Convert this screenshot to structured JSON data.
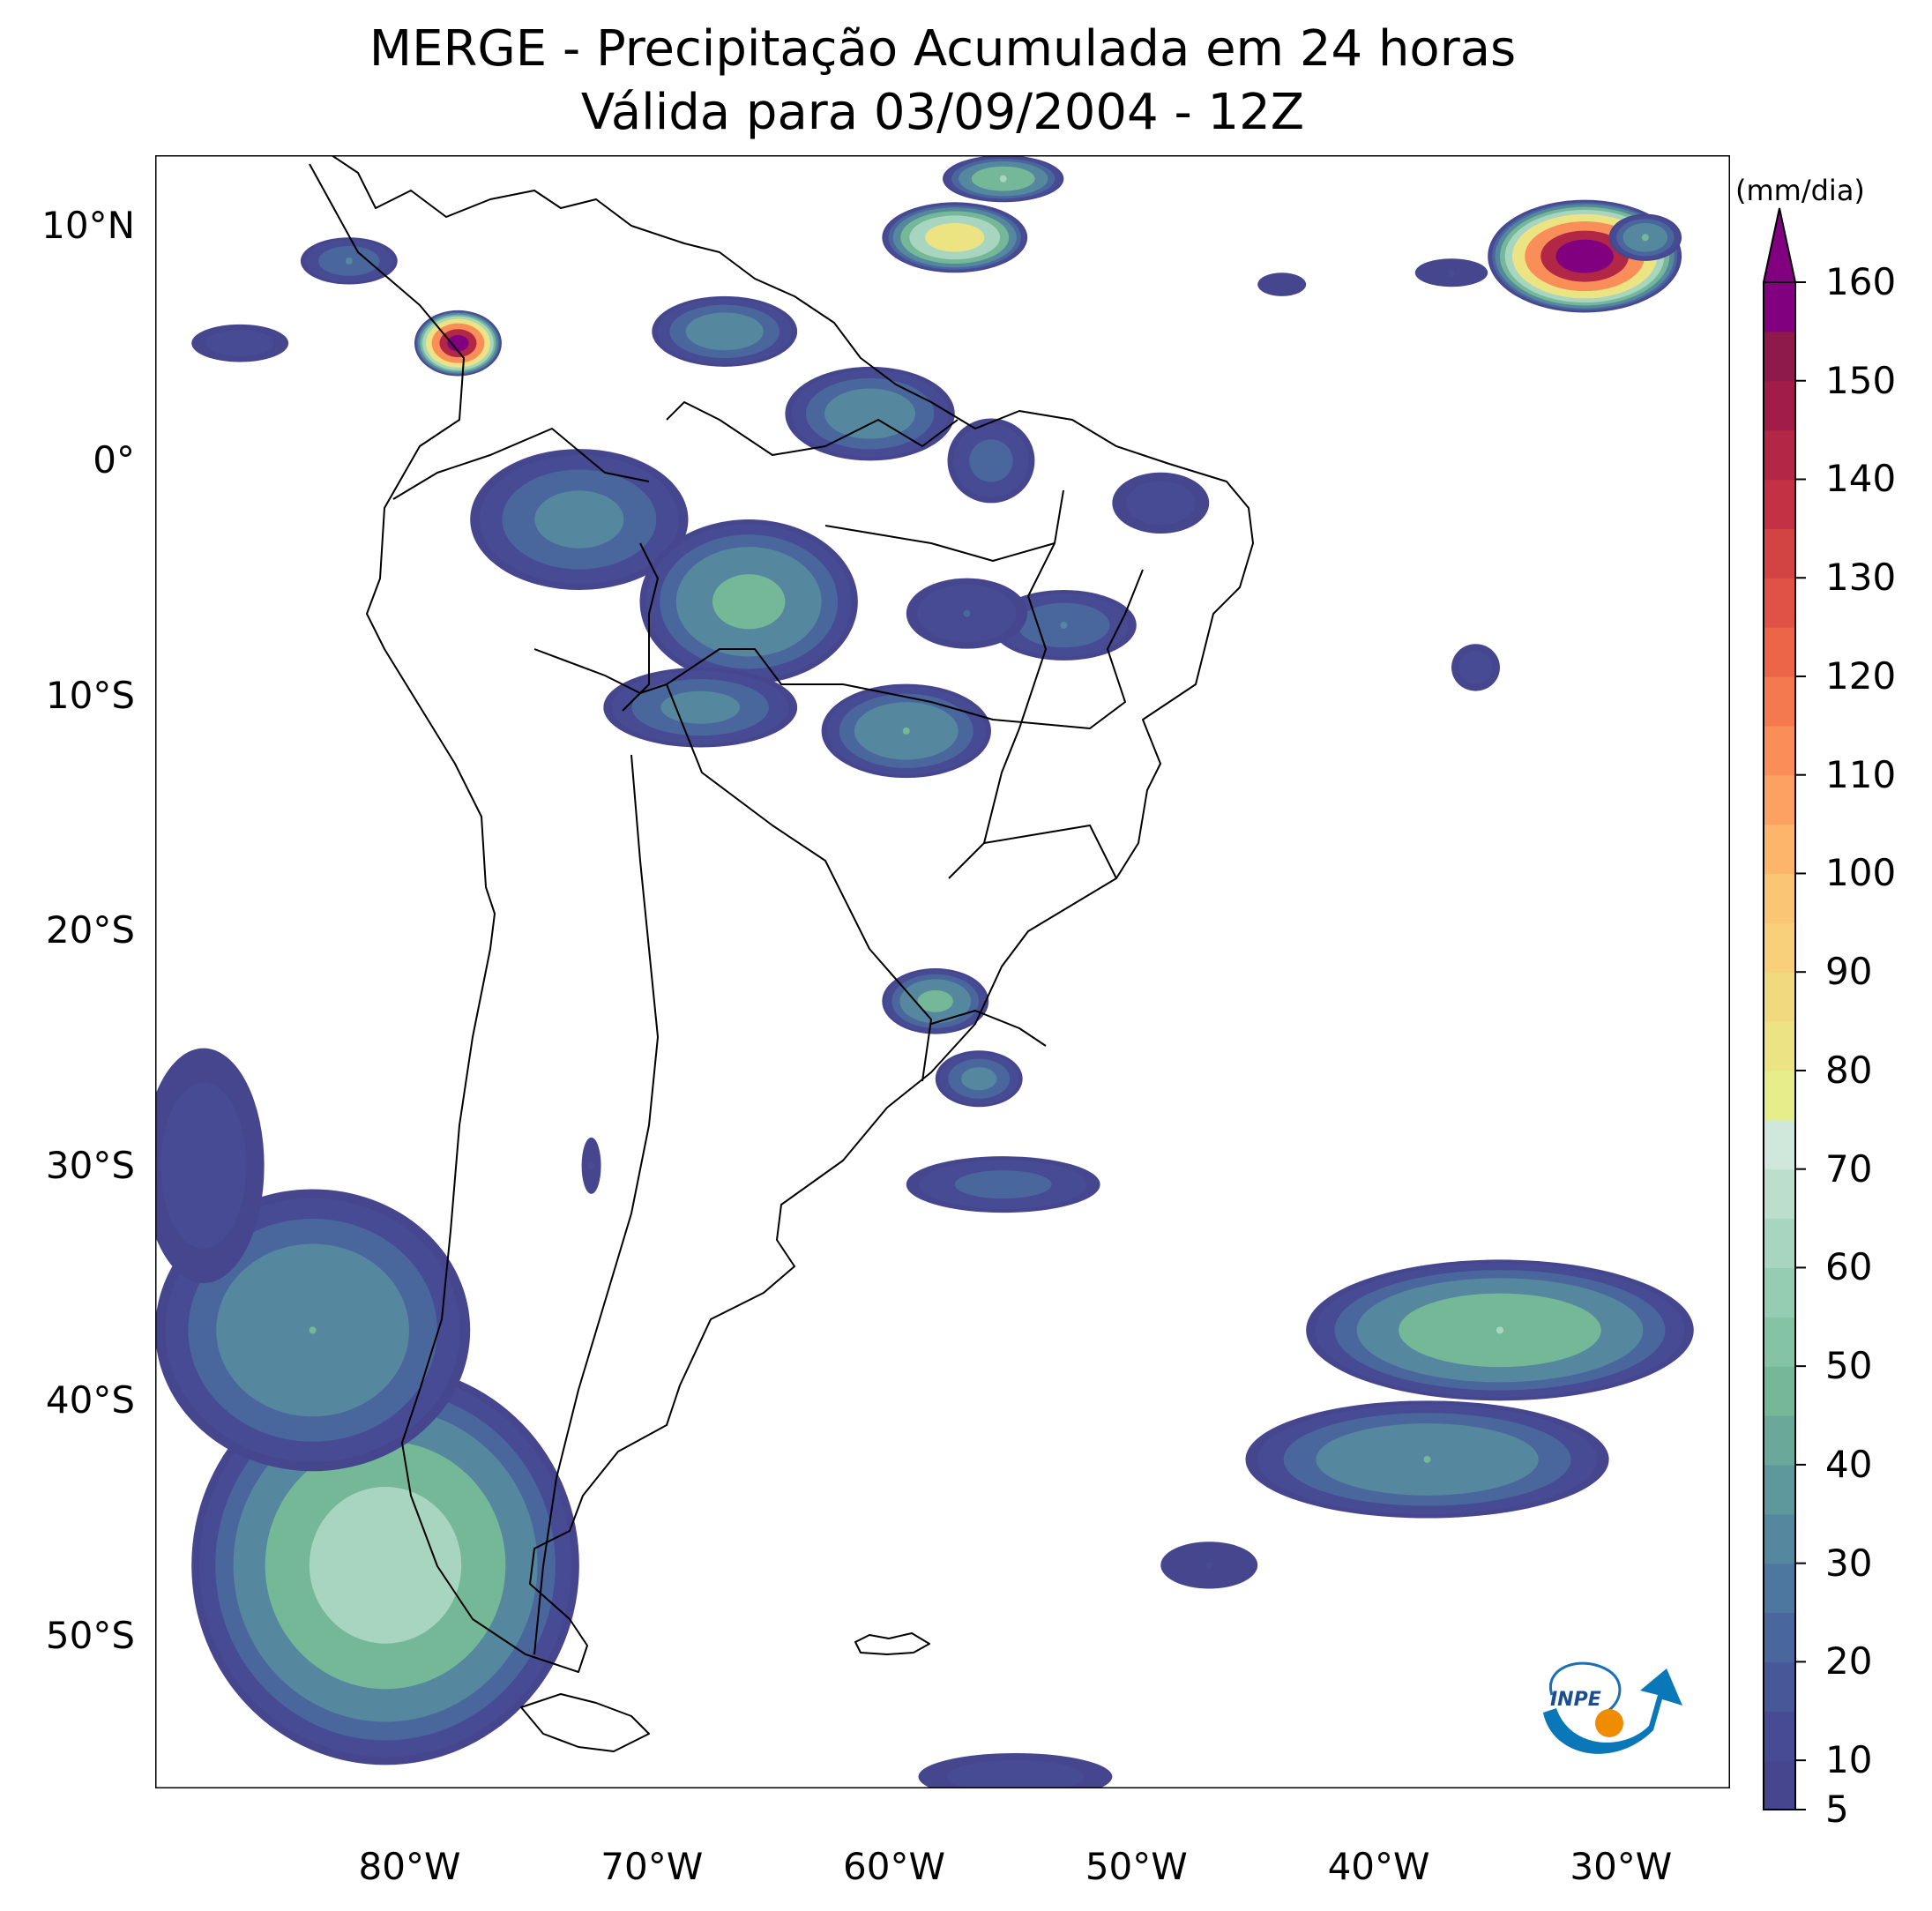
{
  "title": "MERGE - Precipitação Acumulada em 24 horas",
  "subtitle": "Válida para 03/09/2004 - 12Z",
  "map": {
    "extent": {
      "lon_min": -90.5,
      "lon_max": -25.5,
      "lat_min": -56.5,
      "lat_max": 13
    },
    "lat_labels": [
      {
        "lat": 10,
        "text": "10°N"
      },
      {
        "lat": 0,
        "text": "0°"
      },
      {
        "lat": -10,
        "text": "10°S"
      },
      {
        "lat": -20,
        "text": "20°S"
      },
      {
        "lat": -30,
        "text": "30°S"
      },
      {
        "lat": -40,
        "text": "40°S"
      },
      {
        "lat": -50,
        "text": "50°S"
      }
    ],
    "lon_labels": [
      {
        "lon": -80,
        "text": "80°W"
      },
      {
        "lon": -70,
        "text": "70°W"
      },
      {
        "lon": -60,
        "text": "60°W"
      },
      {
        "lon": -50,
        "text": "50°W"
      },
      {
        "lon": -40,
        "text": "40°W"
      },
      {
        "lon": -30,
        "text": "30°W"
      }
    ],
    "precip_areas": [
      {
        "name": "atlantic-north-max",
        "lon": -31.5,
        "lat": 8.7,
        "rx_deg": 4.0,
        "ry_deg": 2.4,
        "peak_mm": 175
      },
      {
        "name": "atlantic-north-east",
        "lon": -29.0,
        "lat": 9.5,
        "rx_deg": 1.5,
        "ry_deg": 1.0,
        "peak_mm": 45
      },
      {
        "name": "atlantic-north-west",
        "lon": -37.0,
        "lat": 8.0,
        "rx_deg": 1.5,
        "ry_deg": 0.6,
        "peak_mm": 10
      },
      {
        "name": "atlantic-north-small",
        "lon": -44.0,
        "lat": 7.5,
        "rx_deg": 1.0,
        "ry_deg": 0.5,
        "peak_mm": 8
      },
      {
        "name": "caribbean",
        "lon": -57.5,
        "lat": 9.5,
        "rx_deg": 3.0,
        "ry_deg": 1.5,
        "peak_mm": 95
      },
      {
        "name": "caribbean-north",
        "lon": -55.5,
        "lat": 12.0,
        "rx_deg": 2.5,
        "ry_deg": 1.0,
        "peak_mm": 60
      },
      {
        "name": "pacific-colombia",
        "lon": -78.0,
        "lat": 5.0,
        "rx_deg": 1.8,
        "ry_deg": 1.4,
        "peak_mm": 170
      },
      {
        "name": "panama",
        "lon": -82.5,
        "lat": 8.5,
        "rx_deg": 2.0,
        "ry_deg": 1.0,
        "peak_mm": 30
      },
      {
        "name": "pacific-east",
        "lon": -87.0,
        "lat": 5.0,
        "rx_deg": 2.0,
        "ry_deg": 0.8,
        "peak_mm": 15
      },
      {
        "name": "venezuela",
        "lon": -67.0,
        "lat": 5.5,
        "rx_deg": 3.0,
        "ry_deg": 1.5,
        "peak_mm": 40
      },
      {
        "name": "guyana",
        "lon": -61.0,
        "lat": 2.0,
        "rx_deg": 3.5,
        "ry_deg": 2.0,
        "peak_mm": 40
      },
      {
        "name": "amapa",
        "lon": -56.0,
        "lat": 0.0,
        "rx_deg": 1.8,
        "ry_deg": 1.8,
        "peak_mm": 25
      },
      {
        "name": "marajo",
        "lon": -49.0,
        "lat": -1.8,
        "rx_deg": 2.0,
        "ry_deg": 1.3,
        "peak_mm": 15
      },
      {
        "name": "amazon-northwest",
        "lon": -73.0,
        "lat": -2.5,
        "rx_deg": 4.5,
        "ry_deg": 3.0,
        "peak_mm": 35
      },
      {
        "name": "amazon-central",
        "lon": -66.0,
        "lat": -6.0,
        "rx_deg": 4.5,
        "ry_deg": 3.5,
        "peak_mm": 50
      },
      {
        "name": "amazon-acre",
        "lon": -68.0,
        "lat": -10.5,
        "rx_deg": 4.0,
        "ry_deg": 1.7,
        "peak_mm": 35
      },
      {
        "name": "rondonia",
        "lon": -59.5,
        "lat": -11.5,
        "rx_deg": 3.5,
        "ry_deg": 2.0,
        "peak_mm": 45
      },
      {
        "name": "mato-grosso-north",
        "lon": -53.0,
        "lat": -7.0,
        "rx_deg": 3.0,
        "ry_deg": 1.5,
        "peak_mm": 30
      },
      {
        "name": "para-south",
        "lon": -57.0,
        "lat": -6.5,
        "rx_deg": 2.5,
        "ry_deg": 1.5,
        "peak_mm": 20
      },
      {
        "name": "pernambuco-coast",
        "lon": -36.0,
        "lat": -8.8,
        "rx_deg": 1.0,
        "ry_deg": 1.0,
        "peak_mm": 15
      },
      {
        "name": "paraguay-north",
        "lon": -58.3,
        "lat": -23.0,
        "rx_deg": 2.2,
        "ry_deg": 1.4,
        "peak_mm": 50
      },
      {
        "name": "paraguay-south",
        "lon": -56.5,
        "lat": -26.3,
        "rx_deg": 1.8,
        "ry_deg": 1.2,
        "peak_mm": 35
      },
      {
        "name": "uruguay-argentina",
        "lon": -55.5,
        "lat": -30.8,
        "rx_deg": 4.0,
        "ry_deg": 1.2,
        "peak_mm": 25
      },
      {
        "name": "chile-coast",
        "lon": -72.5,
        "lat": -30.0,
        "rx_deg": 0.4,
        "ry_deg": 1.2,
        "peak_mm": 10
      },
      {
        "name": "southeast-atlantic-east",
        "lon": -35.0,
        "lat": -37.0,
        "rx_deg": 8.0,
        "ry_deg": 3.0,
        "peak_mm": 60
      },
      {
        "name": "southeast-atlantic-south",
        "lon": -38.0,
        "lat": -42.5,
        "rx_deg": 7.5,
        "ry_deg": 2.5,
        "peak_mm": 45
      },
      {
        "name": "atlantic-south-small",
        "lon": -47.0,
        "lat": -47.0,
        "rx_deg": 2.0,
        "ry_deg": 1.0,
        "peak_mm": 10
      },
      {
        "name": "pacific-south-front",
        "lon": -81.0,
        "lat": -47.0,
        "rx_deg": 8.0,
        "ry_deg": 8.5,
        "peak_mm": 70
      },
      {
        "name": "pacific-south-band",
        "lon": -84.0,
        "lat": -37.0,
        "rx_deg": 6.5,
        "ry_deg": 6.0,
        "peak_mm": 45
      },
      {
        "name": "pacific-south-west",
        "lon": -88.5,
        "lat": -30.0,
        "rx_deg": 2.5,
        "ry_deg": 5.0,
        "peak_mm": 15
      },
      {
        "name": "drake-passage",
        "lon": -55.0,
        "lat": -56.0,
        "rx_deg": 4.0,
        "ry_deg": 1.0,
        "peak_mm": 15
      }
    ]
  },
  "colorbar": {
    "unit": "(mm/dia)",
    "min": 5,
    "max": 160,
    "labels": [
      "5",
      "10",
      "20",
      "30",
      "40",
      "50",
      "60",
      "70",
      "80",
      "90",
      "100",
      "110",
      "120",
      "130",
      "140",
      "150",
      "160"
    ],
    "label_values": [
      5,
      10,
      20,
      30,
      40,
      50,
      60,
      70,
      80,
      90,
      100,
      110,
      120,
      130,
      140,
      150,
      160
    ],
    "colors": [
      "#46468f",
      "#464b93",
      "#475899",
      "#4a679d",
      "#4d779f",
      "#55889e",
      "#5f989c",
      "#6aa99a",
      "#74b898",
      "#84c4a4",
      "#95cdb2",
      "#a8d5bf",
      "#bcdecc",
      "#d0e7dc",
      "#e6ed8b",
      "#ece483",
      "#f1da7e",
      "#f7d079",
      "#fbc673",
      "#fcb56a",
      "#fca162",
      "#f98e58",
      "#f4794f",
      "#ec6549",
      "#e15246",
      "#d24344",
      "#c23244",
      "#b22646",
      "#a11c48",
      "#8e1a4c",
      "#800080"
    ],
    "extend_color": "#800080"
  },
  "logo_text": "INPE"
}
